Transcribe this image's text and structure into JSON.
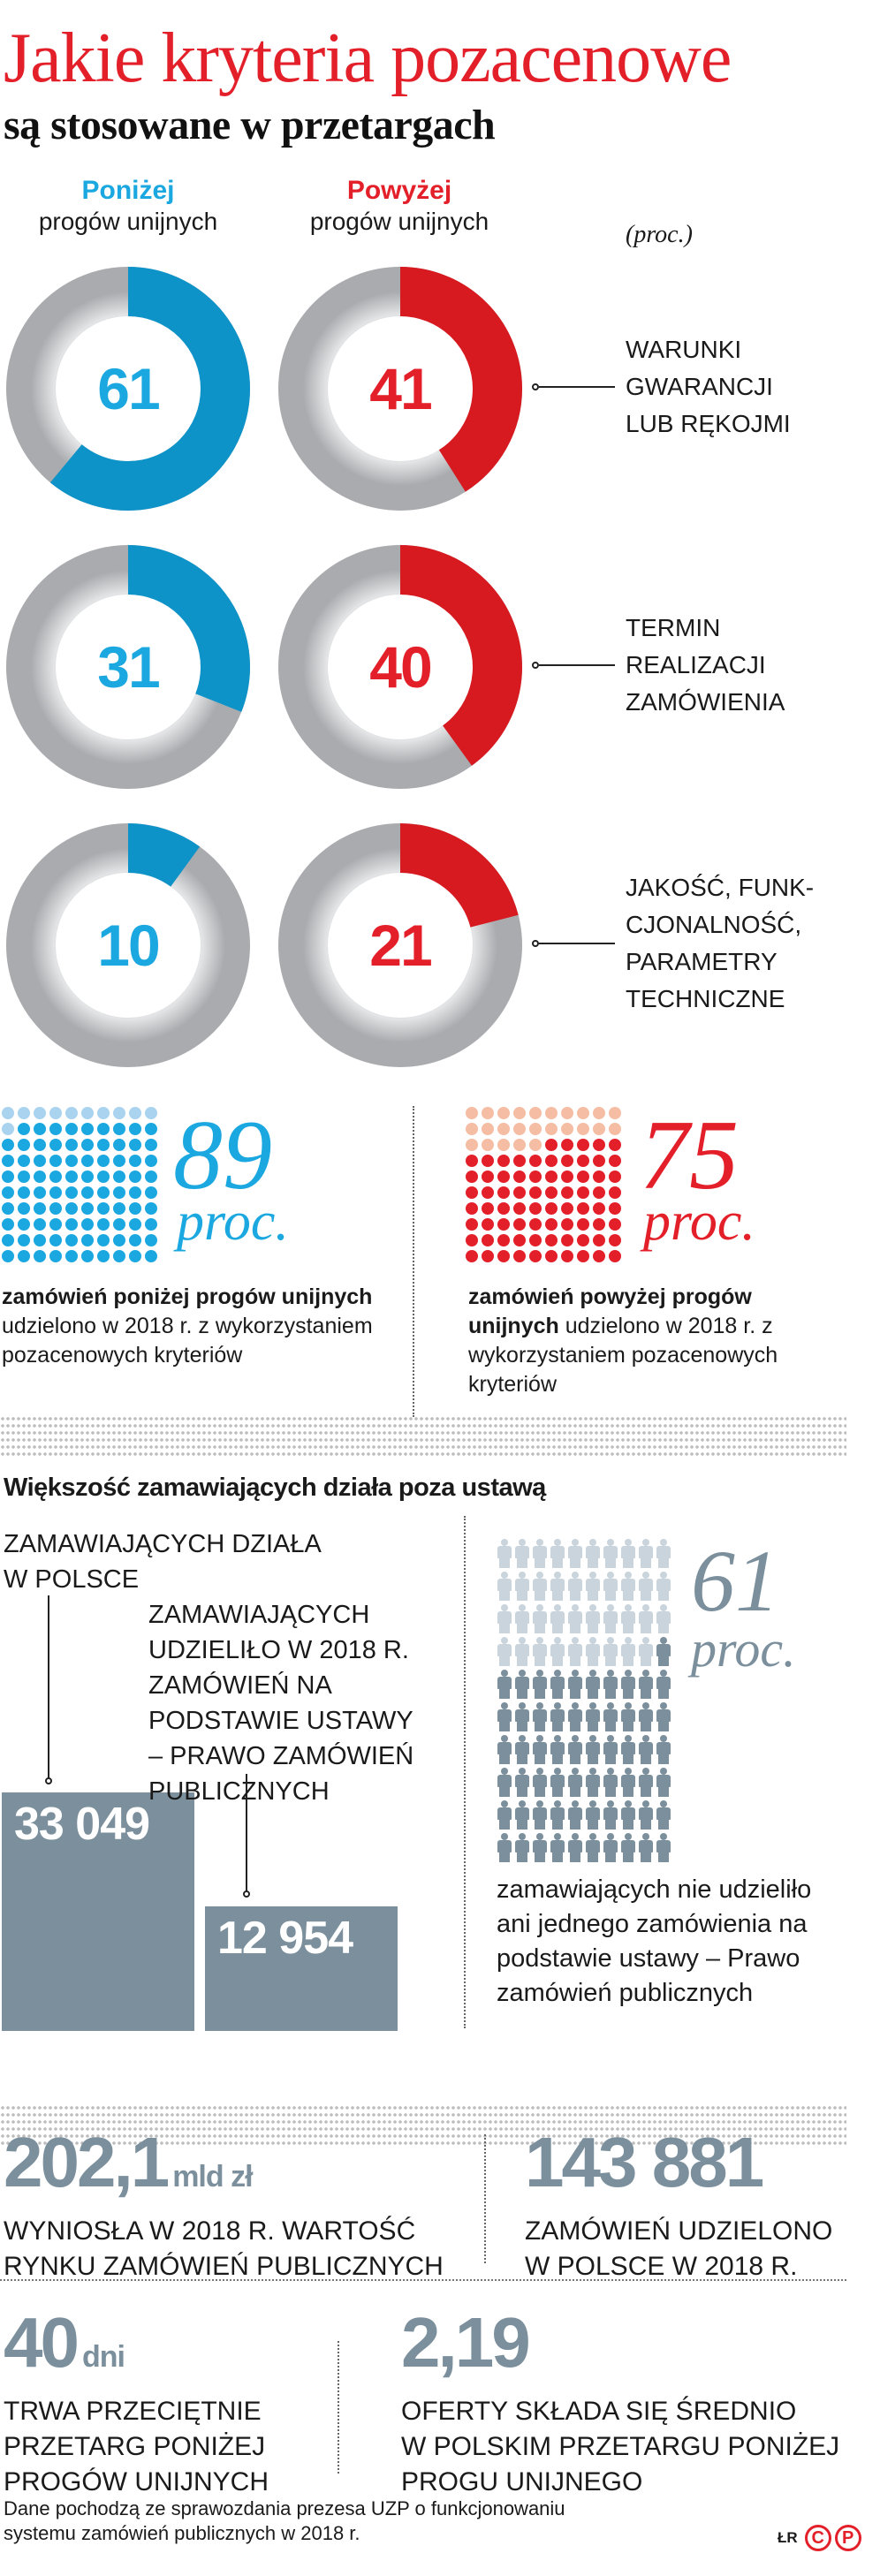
{
  "header": {
    "title": "Jakie kryteria pozacenowe",
    "subtitle": "są stosowane w przetargach"
  },
  "columns": {
    "below": {
      "heading": "Poniżej",
      "sub": "progów unijnych",
      "color": "#1ba8e0"
    },
    "above": {
      "heading": "Powyżej",
      "sub": "progów unijnych",
      "color": "#e3202a"
    },
    "unit_note": "(proc.)"
  },
  "criteria": [
    {
      "label_lines": [
        "WARUNKI",
        "GWARANCJI",
        "LUB RĘKOJMI"
      ],
      "below": "61",
      "above": "41"
    },
    {
      "label_lines": [
        "TERMIN",
        "REALIZACJI",
        "ZAMÓWIENIA"
      ],
      "below": "31",
      "above": "40"
    },
    {
      "label_lines": [
        "JAKOŚĆ, FUNK-",
        "CJONALNOŚĆ,",
        "PARAMETRY",
        "TECHNICZNE"
      ],
      "below": "10",
      "above": "21"
    }
  ],
  "share": {
    "below": {
      "value": "89",
      "unit": "proc.",
      "caption_bold": "zamówień poniżej progów unijnych",
      "caption_rest": " udzielono w 2018 r. z wykorzystaniem pozacenowych kryteriów"
    },
    "above": {
      "value": "75",
      "unit": "proc.",
      "caption_bold": "zamówień powyżej progów unijnych",
      "caption_rest": " udzielono w 2018 r. z wykorzystaniem pozacenowych kryteriów"
    }
  },
  "section2": {
    "heading": "Większość zamawiających działa poza ustawą",
    "bar1": {
      "label_lines": [
        "ZAMAWIAJĄCYCH DZIAŁA",
        "W POLSCE"
      ],
      "value": "33 049"
    },
    "bar2": {
      "label_lines": [
        "ZAMAWIAJĄCYCH",
        "UDZIELIŁO W 2018 R.",
        "ZAMÓWIEŃ NA",
        "PODSTAWIE USTAWY",
        "– PRAWO ZAMÓWIEŃ",
        "PUBLICZNYCH"
      ],
      "value": "12 954"
    },
    "people": {
      "value": "61",
      "unit": "proc.",
      "caption": "zamawiających nie udzieliło ani jednego zamówienia na podstawie ustawy – Prawo zamówień publicznych"
    }
  },
  "stats": [
    {
      "value": "202,1",
      "unit": "mld zł",
      "caption_lines": [
        "WYNIOSŁA W 2018 R. WARTOŚĆ",
        "RYNKU ZAMÓWIEŃ PUBLICZNYCH"
      ]
    },
    {
      "value": "143 881",
      "unit": "",
      "caption_lines": [
        "ZAMÓWIEŃ UDZIELONO",
        "W POLSCE W 2018 R."
      ]
    },
    {
      "value": "40",
      "unit": "dni",
      "caption_lines": [
        "TRWA PRZECIĘTNIE",
        "PRZETARG PONIŻEJ",
        "PROGÓW UNIJNYCH"
      ]
    },
    {
      "value": "2,19",
      "unit": "",
      "caption_lines": [
        "OFERTY SKŁADA SIĘ ŚREDNIO",
        "W POLSKIM PRZETARGU PONIŻEJ",
        "PROGU UNIJNEGO"
      ]
    }
  ],
  "footer": {
    "source_lines": [
      "Dane pochodzą ze sprawozdania prezesa UZP o funkcjonowaniu",
      "systemu zamówień publicznych w 2018 r."
    ],
    "credit": "ŁR",
    "logo_letters": [
      "C",
      "P"
    ]
  },
  "colors": {
    "blue": "#1ba8e0",
    "blue_dark": "#0e93c9",
    "blue_light": "#a9d3ee",
    "red": "#e3202a",
    "red_light": "#f5bda3",
    "slate": "#7b8f9c",
    "slate_light": "#c9d4dc",
    "ring_grey": "#d6d7d9"
  },
  "chart_data": [
    {
      "type": "pie",
      "title": "Jakie kryteria pozacenowe są stosowane w przetargach (proc.)",
      "categories": [
        "Warunki gwarancji lub rękojmi",
        "Termin realizacji zamówienia",
        "Jakość, funkcjonalność, parametry techniczne"
      ],
      "series": [
        {
          "name": "Poniżej progów unijnych",
          "values": [
            61,
            31,
            10
          ]
        },
        {
          "name": "Powyżej progów unijnych",
          "values": [
            41,
            40,
            21
          ]
        }
      ]
    },
    {
      "type": "bar",
      "title": "Udział zamówień z pozacenowymi kryteriami (proc.)",
      "categories": [
        "Poniżej progów unijnych",
        "Powyżej progów unijnych"
      ],
      "values": [
        89,
        75
      ]
    },
    {
      "type": "bar",
      "title": "Większość zamawiających działa poza ustawą",
      "categories": [
        "Zamawiających działa w Polsce",
        "Zamawiających udzieliło w 2018 r. zamówień na podstawie ustawy – Prawo zamówień publicznych"
      ],
      "values": [
        33049,
        12954
      ]
    },
    {
      "type": "bar",
      "title": "Zamawiających nie udzieliło ani jednego zamówienia na podstawie ustawy (proc.)",
      "categories": [
        "Nie udzieliło",
        "Udzieliło"
      ],
      "values": [
        61,
        39
      ]
    }
  ]
}
